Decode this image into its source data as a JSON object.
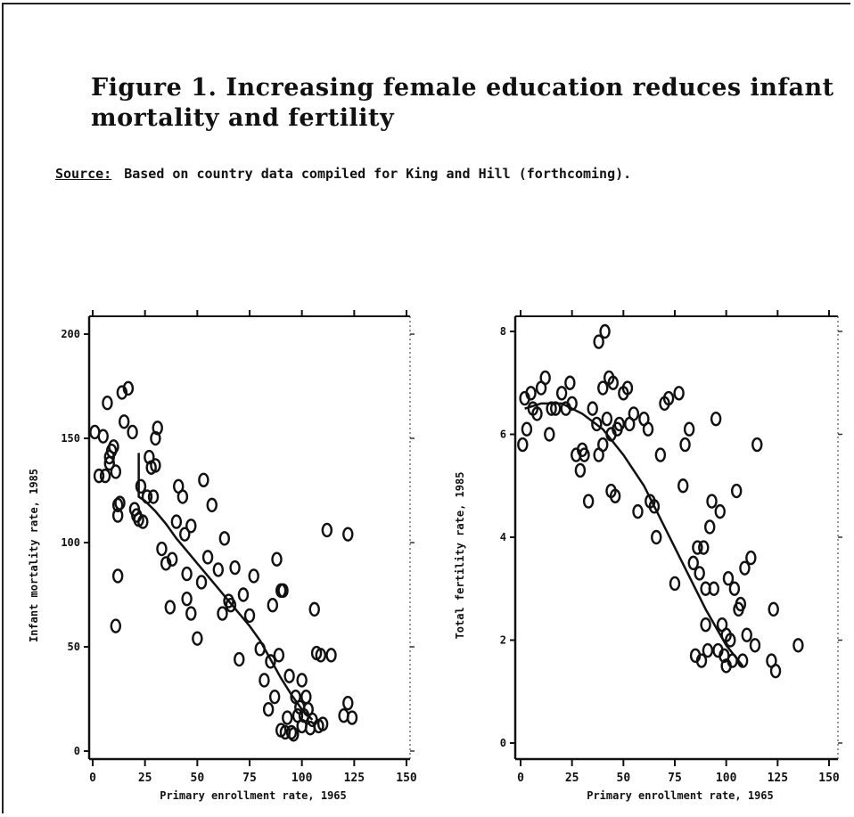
{
  "figure": {
    "title_line1": "Figure 1.  Increasing female education reduces infant",
    "title_line2": "mortality and fertility",
    "source_label": "Source:",
    "source_text": "Based on country data compiled for King and Hill (forthcoming)."
  },
  "chart_data": [
    {
      "type": "scatter",
      "title": "",
      "xlabel": "Primary enrollment rate, 1965",
      "ylabel": "Infant mortality rate, 1985",
      "xlim": [
        0,
        150
      ],
      "ylim": [
        0,
        200
      ],
      "x_ticks": [
        "0",
        "25",
        "50",
        "75",
        "100",
        "125",
        "150"
      ],
      "y_ticks": [
        "0",
        "50",
        "100",
        "150",
        "200"
      ],
      "x_tick_values": [
        0,
        25,
        50,
        75,
        100,
        125,
        150
      ],
      "y_tick_values": [
        0,
        50,
        100,
        150,
        200
      ],
      "series": [
        {
          "kind": "points",
          "x": [
            1,
            3,
            5,
            6,
            7,
            8,
            9,
            10,
            11,
            12,
            14,
            15,
            17,
            19,
            20,
            21,
            22,
            23,
            24,
            26,
            27,
            28,
            29,
            30,
            31,
            33,
            35,
            37,
            38,
            40,
            41,
            43,
            44,
            45,
            47,
            50,
            52,
            53,
            55,
            57,
            60,
            62,
            63,
            65,
            66,
            68,
            70,
            72,
            75,
            77,
            80,
            82,
            84,
            85,
            86,
            87,
            88,
            89,
            90,
            90,
            91,
            92,
            93,
            94,
            95,
            96,
            97,
            98,
            99,
            100,
            100,
            101,
            102,
            103,
            104,
            105,
            106,
            107,
            108,
            109,
            110,
            112,
            114,
            120,
            122,
            122,
            124,
            12,
            11,
            30,
            45,
            47,
            8,
            12,
            13
          ],
          "y": [
            153,
            132,
            151,
            132,
            167,
            141,
            144,
            146,
            60,
            84,
            172,
            158,
            174,
            153,
            116,
            113,
            111,
            127,
            110,
            122,
            141,
            136,
            122,
            150,
            155,
            97,
            90,
            69,
            92,
            110,
            127,
            122,
            104,
            85,
            108,
            54,
            81,
            130,
            93,
            118,
            87,
            66,
            102,
            72,
            70,
            88,
            44,
            75,
            65,
            84,
            49,
            34,
            20,
            43,
            70,
            26,
            92,
            46,
            77,
            10,
            77,
            9,
            16,
            36,
            9,
            8,
            26,
            17,
            21,
            34,
            12,
            17,
            26,
            20,
            11,
            15,
            68,
            47,
            12,
            46,
            13,
            106,
            46,
            17,
            104,
            23,
            16,
            113,
            134,
            137,
            73,
            66,
            138,
            118,
            119
          ]
        },
        {
          "kind": "trend",
          "x": [
            22,
            22,
            25,
            30,
            35,
            40,
            45,
            50,
            55,
            60,
            65,
            70,
            75,
            80,
            85,
            90,
            95,
            100,
            105
          ],
          "y": [
            143,
            122,
            120,
            115,
            109,
            102,
            96,
            90,
            84,
            78,
            72,
            66,
            60,
            53,
            44,
            35,
            27,
            20,
            15
          ]
        }
      ]
    },
    {
      "type": "scatter",
      "title": "",
      "xlabel": "Primary enrollment rate, 1965",
      "ylabel": "Total fertility rate, 1985",
      "xlim": [
        0,
        150
      ],
      "ylim": [
        0,
        8
      ],
      "x_ticks": [
        "0",
        "25",
        "50",
        "75",
        "100",
        "125",
        "150"
      ],
      "y_ticks": [
        "0",
        "2",
        "4",
        "6",
        "8"
      ],
      "x_tick_values": [
        0,
        25,
        50,
        75,
        100,
        125,
        150
      ],
      "y_tick_values": [
        0,
        2,
        4,
        6,
        8
      ],
      "series": [
        {
          "kind": "points",
          "x": [
            1,
            2,
            3,
            5,
            6,
            8,
            10,
            12,
            14,
            15,
            17,
            20,
            22,
            24,
            25,
            27,
            29,
            30,
            31,
            33,
            35,
            37,
            38,
            40,
            41,
            43,
            44,
            45,
            47,
            50,
            52,
            53,
            55,
            57,
            60,
            62,
            63,
            65,
            66,
            68,
            70,
            72,
            75,
            77,
            79,
            80,
            82,
            84,
            85,
            86,
            87,
            88,
            89,
            90,
            90,
            91,
            92,
            93,
            94,
            95,
            96,
            97,
            98,
            99,
            100,
            100,
            101,
            102,
            103,
            104,
            105,
            106,
            107,
            108,
            109,
            110,
            112,
            114,
            115,
            122,
            123,
            124,
            135,
            38,
            40,
            42,
            44,
            46,
            48
          ],
          "y": [
            5.8,
            6.7,
            6.1,
            6.8,
            6.5,
            6.4,
            6.9,
            7.1,
            6.0,
            6.5,
            6.5,
            6.8,
            6.5,
            7.0,
            6.6,
            5.6,
            5.3,
            5.7,
            5.6,
            4.7,
            6.5,
            6.2,
            7.8,
            6.9,
            8.0,
            7.1,
            4.9,
            7.0,
            6.1,
            6.8,
            6.9,
            6.2,
            6.4,
            4.5,
            6.3,
            6.1,
            4.7,
            4.6,
            4.0,
            5.6,
            6.6,
            6.7,
            3.1,
            6.8,
            5.0,
            5.8,
            6.1,
            3.5,
            1.7,
            3.8,
            3.3,
            1.6,
            3.8,
            3.0,
            2.3,
            1.8,
            4.2,
            4.7,
            3.0,
            6.3,
            1.8,
            4.5,
            2.3,
            1.7,
            1.5,
            2.1,
            3.2,
            2.0,
            1.6,
            3.0,
            4.9,
            2.6,
            2.7,
            1.6,
            3.4,
            2.1,
            3.6,
            1.9,
            5.8,
            1.6,
            2.6,
            1.4,
            1.9,
            5.6,
            5.8,
            6.3,
            6.0,
            4.8,
            6.2
          ],
          "_note": ""
        },
        {
          "kind": "trend",
          "x": [
            2,
            10,
            20,
            30,
            40,
            50,
            60,
            70,
            80,
            90,
            100,
            108
          ],
          "y": [
            6.5,
            6.6,
            6.6,
            6.4,
            6.1,
            5.6,
            5.0,
            4.2,
            3.4,
            2.6,
            1.9,
            1.5
          ]
        }
      ]
    }
  ]
}
